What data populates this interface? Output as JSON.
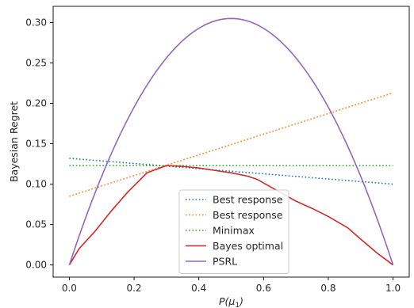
{
  "chart_data": {
    "type": "line",
    "title": "",
    "xlabel": "P(μ1)",
    "ylabel": "Bayesian Regret",
    "xlim": [
      -0.05,
      1.05
    ],
    "ylim": [
      -0.015,
      0.32
    ],
    "xticks": [
      0.0,
      0.2,
      0.4,
      0.6,
      0.8,
      1.0
    ],
    "xtick_labels": [
      "0.0",
      "0.2",
      "0.4",
      "0.6",
      "0.8",
      "1.0"
    ],
    "yticks": [
      0.0,
      0.05,
      0.1,
      0.15,
      0.2,
      0.25,
      0.3
    ],
    "ytick_labels": [
      "0.00",
      "0.05",
      "0.10",
      "0.15",
      "0.20",
      "0.25",
      "0.30"
    ],
    "grid": false,
    "legend_position": "bottom-center",
    "series": [
      {
        "name": "Best response",
        "color": "#1f77b4",
        "style": "dotted",
        "x": [
          0.0,
          1.0
        ],
        "y": [
          0.132,
          0.1
        ]
      },
      {
        "name": "Best response",
        "color": "#ff7f0e",
        "style": "dotted",
        "x": [
          0.0,
          1.0
        ],
        "y": [
          0.085,
          0.213
        ]
      },
      {
        "name": "Minimax",
        "color": "#2ca02c",
        "style": "dotted",
        "x": [
          0.0,
          1.0
        ],
        "y": [
          0.123,
          0.123
        ]
      },
      {
        "name": "Bayes optimal",
        "color": "#d62728",
        "style": "solid",
        "x": [
          0.0,
          0.03,
          0.08,
          0.13,
          0.18,
          0.24,
          0.3,
          0.35,
          0.4,
          0.45,
          0.5,
          0.55,
          0.58,
          0.62,
          0.66,
          0.7,
          0.75,
          0.8,
          0.86,
          0.9,
          0.95,
          1.0
        ],
        "y": [
          0.0,
          0.02,
          0.042,
          0.067,
          0.09,
          0.114,
          0.123,
          0.122,
          0.12,
          0.117,
          0.114,
          0.11,
          0.106,
          0.097,
          0.088,
          0.079,
          0.07,
          0.06,
          0.046,
          0.032,
          0.015,
          0.0
        ]
      },
      {
        "name": "PSRL",
        "color": "#9467bd",
        "style": "solid",
        "function": "1.22*x*(1-x)",
        "x_range": [
          0.0,
          1.0
        ]
      }
    ]
  },
  "legend": {
    "items": [
      "Best response",
      "Best response",
      "Minimax",
      "Bayes optimal",
      "PSRL"
    ]
  }
}
